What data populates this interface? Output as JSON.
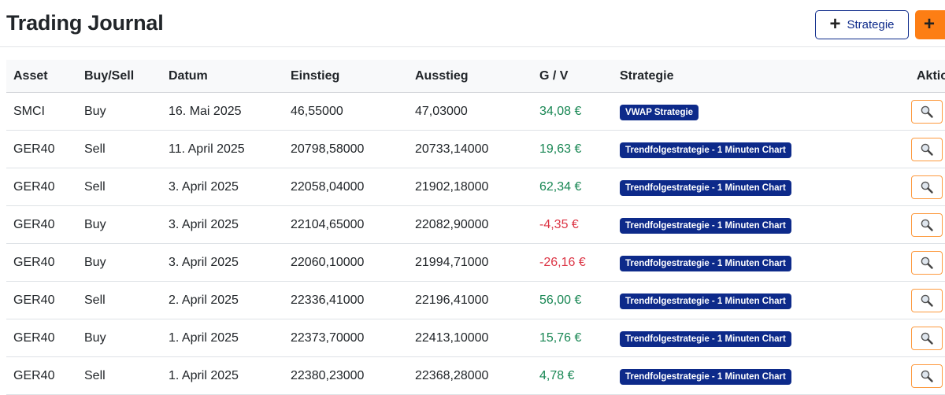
{
  "header": {
    "title": "Trading Journal",
    "strategy_button_label": "Strategie",
    "strategy_button_icon": "plus-icon",
    "add_button_icon": "plus-icon"
  },
  "colors": {
    "positive": "#198754",
    "negative": "#dc3545",
    "badge": "#0d2a8a",
    "accent_orange": "#fd7e14"
  },
  "table": {
    "columns": [
      "Asset",
      "Buy/Sell",
      "Datum",
      "Einstieg",
      "Ausstieg",
      "G / V",
      "Strategie",
      "Aktionen"
    ],
    "rows": [
      {
        "asset": "SMCI",
        "side": "Buy",
        "date": "16. Mai 2025",
        "entry": "46,55000",
        "exit": "47,03000",
        "pnl": "34,08 €",
        "pnl_sign": "pos",
        "strategy": "VWAP Strategie",
        "action_icon": "magnifier-icon"
      },
      {
        "asset": "GER40",
        "side": "Sell",
        "date": "11. April 2025",
        "entry": "20798,58000",
        "exit": "20733,14000",
        "pnl": "19,63 €",
        "pnl_sign": "pos",
        "strategy": "Trendfolgestrategie - 1 Minuten Chart",
        "action_icon": "magnifier-icon"
      },
      {
        "asset": "GER40",
        "side": "Sell",
        "date": "3. April 2025",
        "entry": "22058,04000",
        "exit": "21902,18000",
        "pnl": "62,34 €",
        "pnl_sign": "pos",
        "strategy": "Trendfolgestrategie - 1 Minuten Chart",
        "action_icon": "magnifier-icon"
      },
      {
        "asset": "GER40",
        "side": "Buy",
        "date": "3. April 2025",
        "entry": "22104,65000",
        "exit": "22082,90000",
        "pnl": "-4,35 €",
        "pnl_sign": "neg",
        "strategy": "Trendfolgestrategie - 1 Minuten Chart",
        "action_icon": "magnifier-icon"
      },
      {
        "asset": "GER40",
        "side": "Buy",
        "date": "3. April 2025",
        "entry": "22060,10000",
        "exit": "21994,71000",
        "pnl": "-26,16 €",
        "pnl_sign": "neg",
        "strategy": "Trendfolgestrategie - 1 Minuten Chart",
        "action_icon": "magnifier-icon"
      },
      {
        "asset": "GER40",
        "side": "Sell",
        "date": "2. April 2025",
        "entry": "22336,41000",
        "exit": "22196,41000",
        "pnl": "56,00 €",
        "pnl_sign": "pos",
        "strategy": "Trendfolgestrategie - 1 Minuten Chart",
        "action_icon": "magnifier-icon"
      },
      {
        "asset": "GER40",
        "side": "Buy",
        "date": "1. April 2025",
        "entry": "22373,70000",
        "exit": "22413,10000",
        "pnl": "15,76 €",
        "pnl_sign": "pos",
        "strategy": "Trendfolgestrategie - 1 Minuten Chart",
        "action_icon": "magnifier-icon"
      },
      {
        "asset": "GER40",
        "side": "Sell",
        "date": "1. April 2025",
        "entry": "22380,23000",
        "exit": "22368,28000",
        "pnl": "4,78 €",
        "pnl_sign": "pos",
        "strategy": "Trendfolgestrategie - 1 Minuten Chart",
        "action_icon": "magnifier-icon"
      }
    ]
  }
}
